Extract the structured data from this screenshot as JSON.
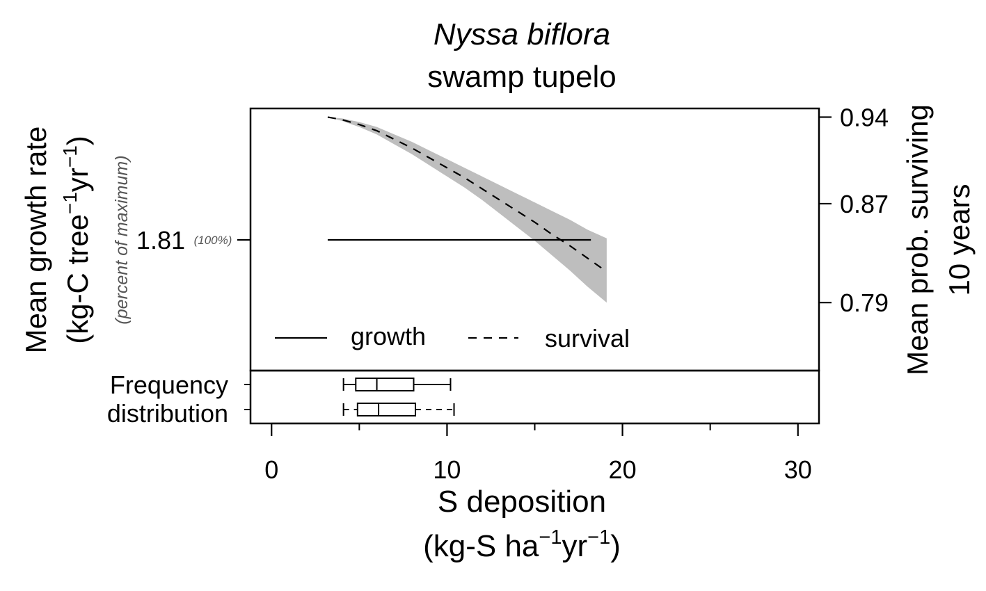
{
  "chart_data": {
    "type": "line",
    "title_italic": "Nyssa biflora",
    "title": "swamp tupelo",
    "xlabel": "S deposition",
    "xlabel_units": {
      "base": "(kg-S ha",
      "exp1": "−1",
      "mid": "yr",
      "exp2": "−1",
      "close": ")"
    },
    "ylabel_left": "Mean growth rate",
    "ylabel_left_units": {
      "base": "(kg-C tree",
      "exp1": "−1",
      "mid": "yr",
      "exp2": "−1",
      "close": ")"
    },
    "ylabel_left_sub": "(percent of maximum)",
    "ylabel_right_line1": "Mean prob. surviving",
    "ylabel_right_line2": "10 years",
    "xlim": [
      -1.2,
      31.2
    ],
    "x_ticks": [
      0,
      10,
      20,
      30
    ],
    "x_minor_ticks": [
      5,
      15,
      25
    ],
    "x_tick_labels": [
      "0",
      "10",
      "20",
      "30"
    ],
    "left_tick": {
      "value": 1.81,
      "label": "1.81",
      "pct_label": "(100%)"
    },
    "right_axis": {
      "ylim": [
        0.735,
        0.947
      ],
      "ticks": [
        0.94,
        0.87,
        0.79
      ],
      "tick_labels": [
        "0.94",
        "0.87",
        "0.79"
      ]
    },
    "series": [
      {
        "name": "growth",
        "style": "solid",
        "x": [
          3.2,
          18.2
        ],
        "y": [
          1.81,
          1.81
        ]
      },
      {
        "name": "survival",
        "style": "dashed",
        "x": [
          3.2,
          4,
          5,
          6,
          7,
          8,
          9,
          10,
          11,
          12,
          13,
          14,
          15,
          16,
          17,
          18,
          19.1
        ],
        "y": [
          0.94,
          0.938,
          0.934,
          0.929,
          0.922,
          0.915,
          0.907,
          0.899,
          0.891,
          0.882,
          0.873,
          0.864,
          0.855,
          0.845,
          0.836,
          0.826,
          0.815
        ],
        "band_upper": [
          0.94,
          0.939,
          0.936,
          0.932,
          0.926,
          0.92,
          0.913,
          0.906,
          0.899,
          0.892,
          0.885,
          0.878,
          0.871,
          0.864,
          0.857,
          0.849,
          0.842
        ],
        "band_lower": [
          0.94,
          0.937,
          0.932,
          0.926,
          0.918,
          0.91,
          0.901,
          0.892,
          0.883,
          0.873,
          0.862,
          0.851,
          0.84,
          0.828,
          0.816,
          0.803,
          0.79
        ]
      }
    ],
    "legend": {
      "placement": "bottom-left",
      "growth_label": "growth",
      "survival_label": "survival"
    },
    "frequency_panel": {
      "label_line1": "Frequency",
      "label_line2": "distribution",
      "boxplots": [
        {
          "whisker_low": 4.1,
          "q1": 4.8,
          "median": 6.0,
          "q3": 8.1,
          "whisker_high": 10.2,
          "whisker_style": "solid"
        },
        {
          "whisker_low": 4.1,
          "q1": 4.9,
          "median": 6.1,
          "q3": 8.2,
          "whisker_high": 10.4,
          "whisker_style": "dashed"
        }
      ]
    },
    "grid": false,
    "band_color": "#bebebe",
    "line_color": "#000000"
  }
}
